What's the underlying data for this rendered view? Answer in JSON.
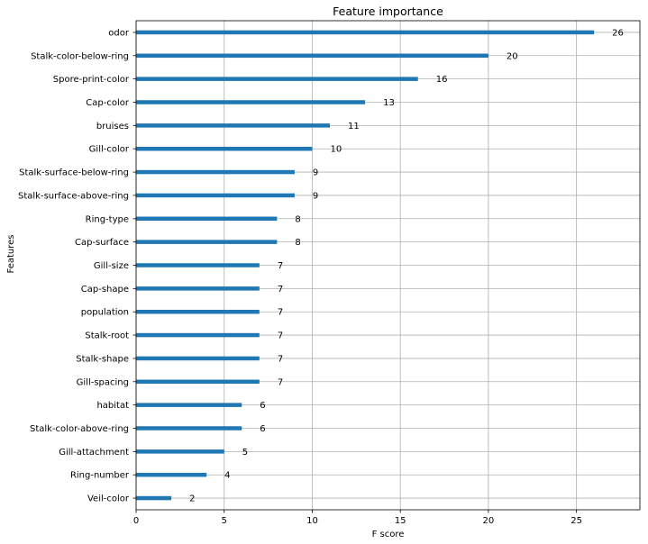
{
  "chart_data": {
    "type": "bar",
    "orientation": "horizontal",
    "title": "Feature importance",
    "xlabel": "F score",
    "ylabel": "Features",
    "xlim": [
      0,
      28.6
    ],
    "x_ticks": [
      0,
      5,
      10,
      15,
      20,
      25
    ],
    "grid": true,
    "categories": [
      "odor",
      "Stalk-color-below-ring",
      "Spore-print-color",
      "Cap-color",
      "bruises",
      "Gill-color",
      "Stalk-surface-below-ring",
      "Stalk-surface-above-ring",
      "Ring-type",
      "Cap-surface",
      "Gill-size",
      "Cap-shape",
      "population",
      "Stalk-root",
      "Stalk-shape",
      "Gill-spacing",
      "habitat",
      "Stalk-color-above-ring",
      "Gill-attachment",
      "Ring-number",
      "Veil-color"
    ],
    "values": [
      26,
      20,
      16,
      13,
      11,
      10,
      9,
      9,
      8,
      8,
      7,
      7,
      7,
      7,
      7,
      7,
      6,
      6,
      5,
      4,
      2
    ],
    "bar_color": "#1f77b4",
    "grid_color": "#b0b0b0"
  }
}
